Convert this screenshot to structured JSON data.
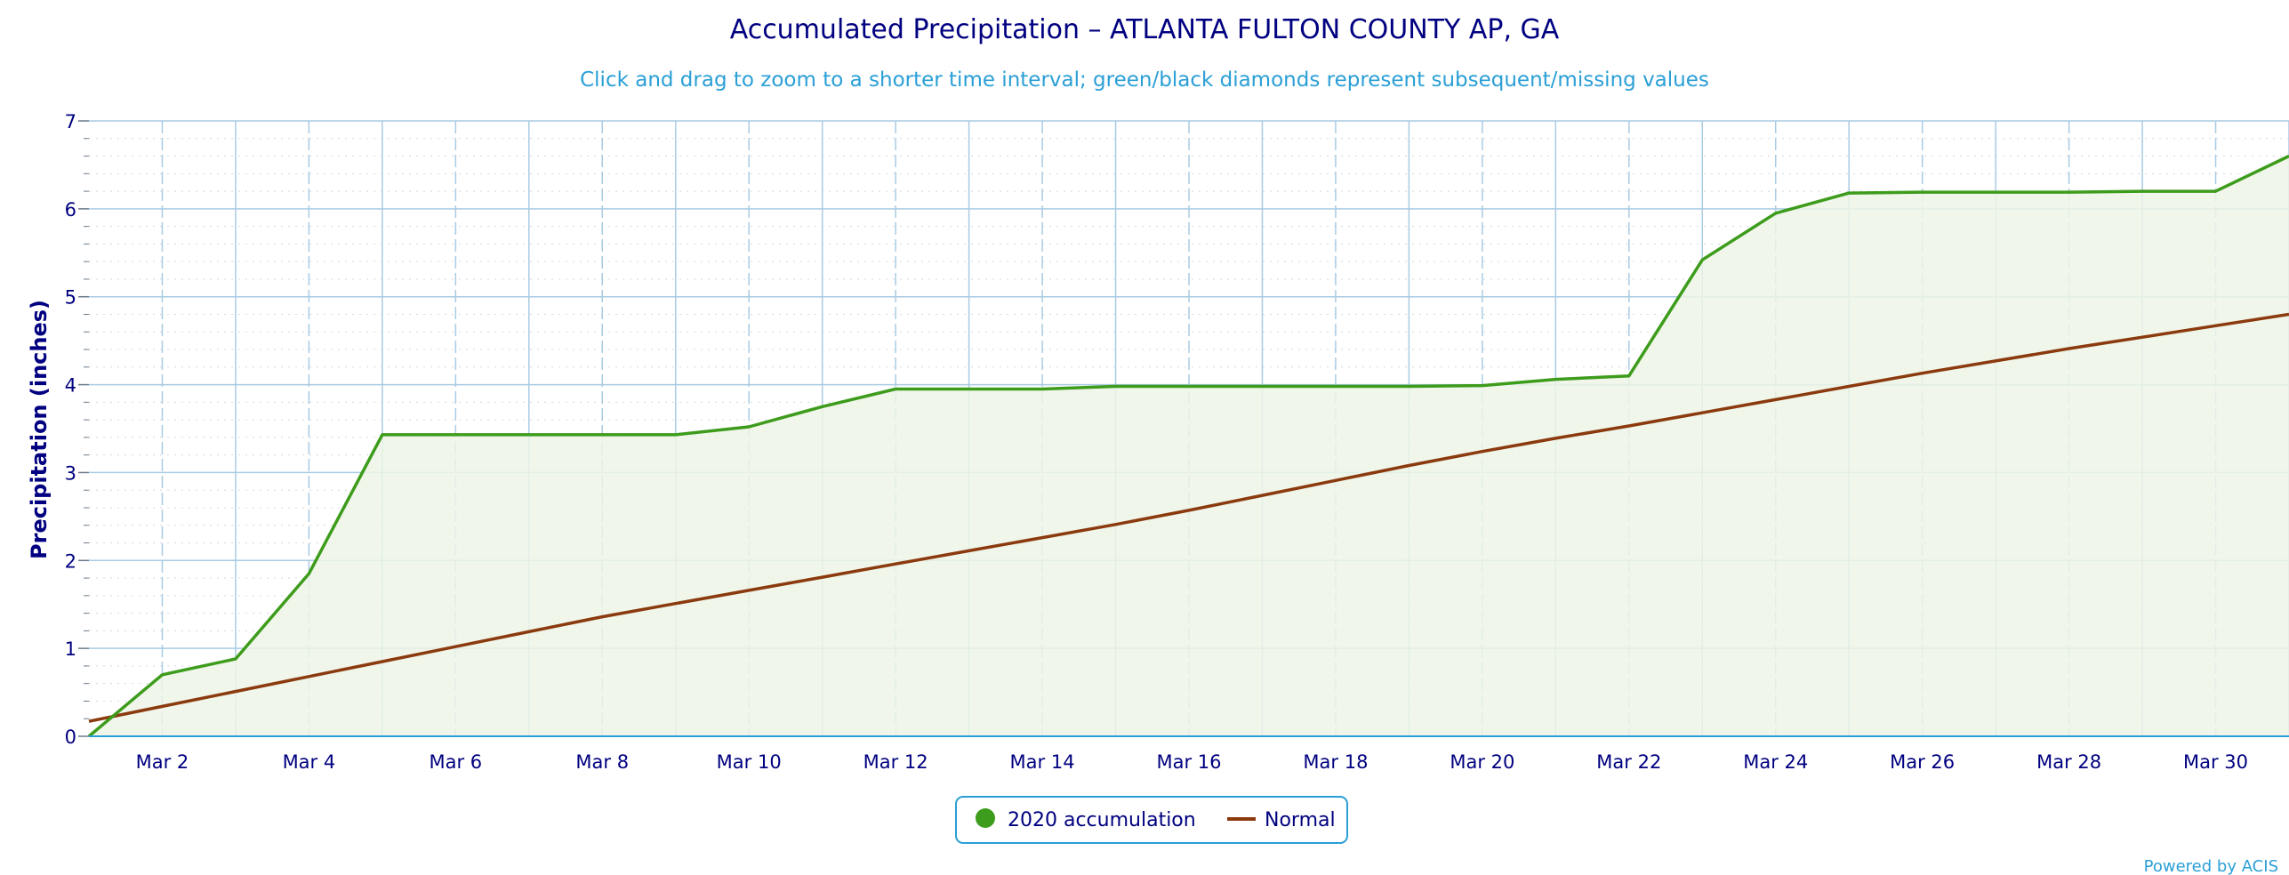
{
  "chart_data": {
    "type": "line",
    "title": "Accumulated Precipitation – ATLANTA FULTON COUNTY AP, GA",
    "subtitle": "Click and drag to zoom to a shorter time interval; green/black diamonds represent subsequent/missing values",
    "ylabel": "Precipitation (inches)",
    "xlabel": "",
    "xlim": [
      1,
      31
    ],
    "ylim": [
      0,
      7
    ],
    "y_ticks": [
      "0",
      "1",
      "2",
      "3",
      "4",
      "5",
      "6",
      "7"
    ],
    "x_ticks": [
      {
        "day": 2,
        "label": "Mar 2"
      },
      {
        "day": 4,
        "label": "Mar 4"
      },
      {
        "day": 6,
        "label": "Mar 6"
      },
      {
        "day": 8,
        "label": "Mar 8"
      },
      {
        "day": 10,
        "label": "Mar 10"
      },
      {
        "day": 12,
        "label": "Mar 12"
      },
      {
        "day": 14,
        "label": "Mar 14"
      },
      {
        "day": 16,
        "label": "Mar 16"
      },
      {
        "day": 18,
        "label": "Mar 18"
      },
      {
        "day": 20,
        "label": "Mar 20"
      },
      {
        "day": 22,
        "label": "Mar 22"
      },
      {
        "day": 24,
        "label": "Mar 24"
      },
      {
        "day": 26,
        "label": "Mar 26"
      },
      {
        "day": 28,
        "label": "Mar 28"
      },
      {
        "day": 30,
        "label": "Mar 30"
      }
    ],
    "grid": true,
    "legend_position": "bottom-center",
    "series": [
      {
        "name": "2020 accumulation",
        "color": "#3d9c1c",
        "fill": "#edf5e6",
        "x": [
          1,
          2,
          3,
          4,
          5,
          6,
          7,
          8,
          9,
          10,
          11,
          12,
          13,
          14,
          15,
          16,
          17,
          18,
          19,
          20,
          21,
          22,
          23,
          24,
          25,
          26,
          27,
          28,
          29,
          30,
          31
        ],
        "values": [
          0.0,
          0.7,
          0.88,
          1.85,
          3.43,
          3.43,
          3.43,
          3.43,
          3.43,
          3.52,
          3.75,
          3.95,
          3.95,
          3.95,
          3.98,
          3.98,
          3.98,
          3.98,
          3.98,
          3.99,
          4.06,
          4.1,
          5.42,
          5.95,
          6.18,
          6.19,
          6.19,
          6.19,
          6.2,
          6.2,
          6.6
        ]
      },
      {
        "name": "Normal",
        "color": "#8b3a0e",
        "x": [
          1,
          2,
          3,
          4,
          5,
          6,
          7,
          8,
          9,
          10,
          11,
          12,
          13,
          14,
          15,
          16,
          17,
          18,
          19,
          20,
          21,
          22,
          23,
          24,
          25,
          26,
          27,
          28,
          29,
          30,
          31
        ],
        "values": [
          0.17,
          0.34,
          0.51,
          0.68,
          0.85,
          1.02,
          1.19,
          1.36,
          1.51,
          1.66,
          1.81,
          1.96,
          2.11,
          2.26,
          2.41,
          2.57,
          2.74,
          2.91,
          3.08,
          3.24,
          3.39,
          3.53,
          3.68,
          3.83,
          3.98,
          4.13,
          4.27,
          4.41,
          4.54,
          4.67,
          4.8
        ]
      }
    ]
  },
  "footer": {
    "credit": "Powered by ACIS"
  }
}
